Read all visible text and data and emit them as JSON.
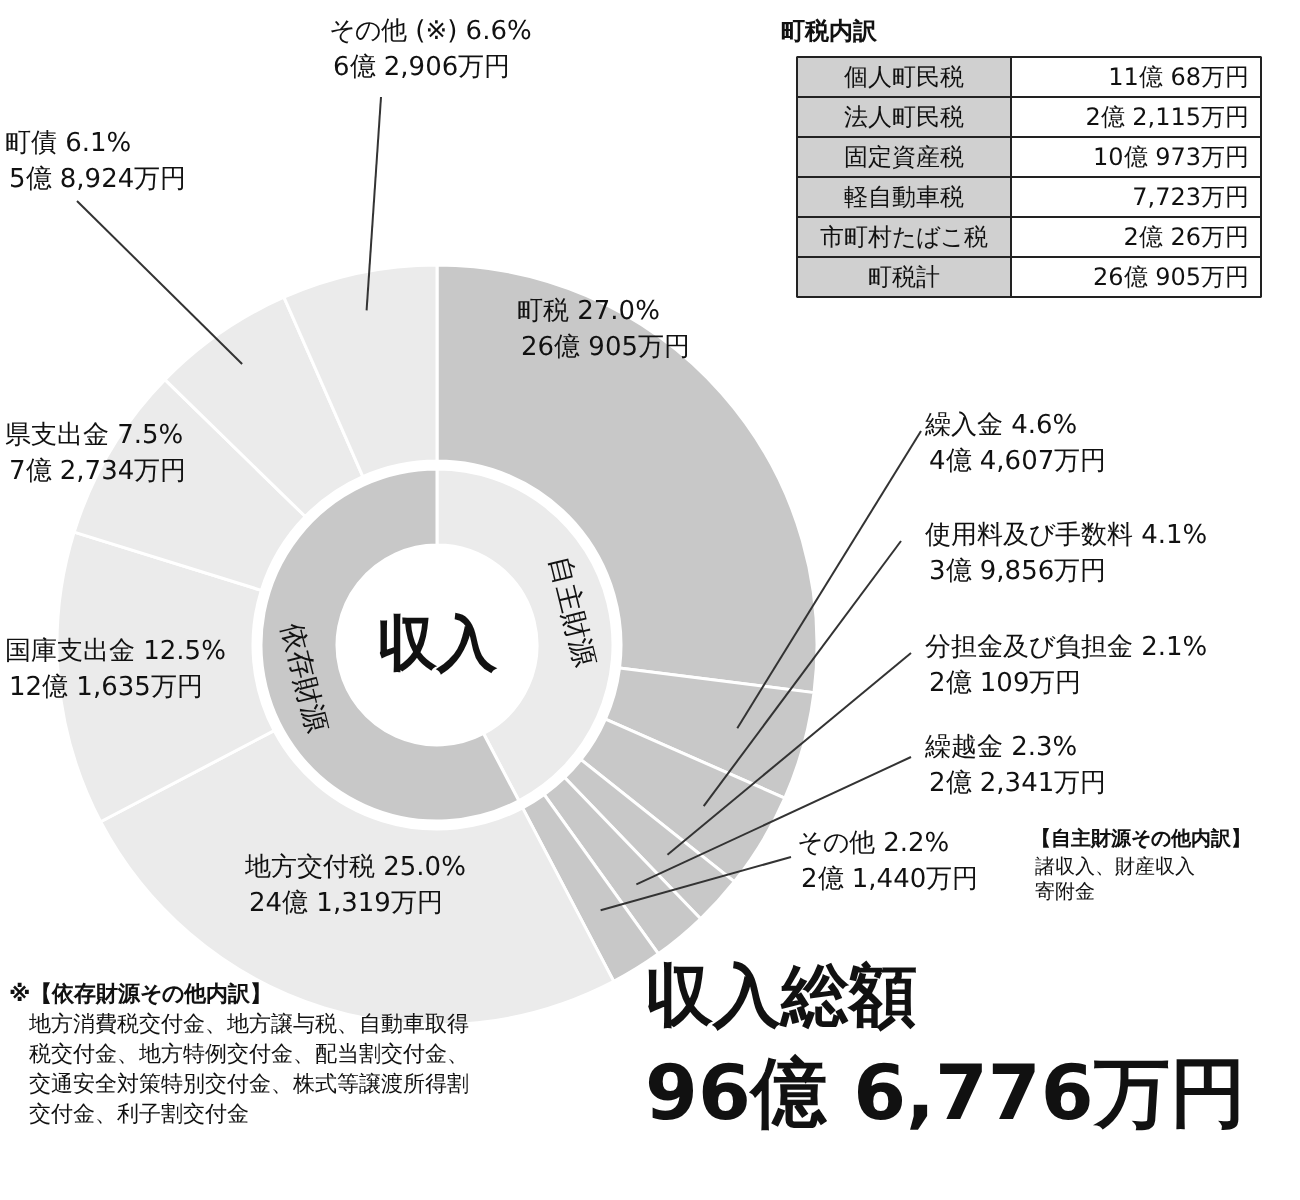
{
  "chart_data": {
    "type": "donut",
    "title": "収入",
    "subtitle": "収入総額",
    "categories": [
      "町税",
      "繰入金",
      "使用料及び手数料",
      "分担金及び負担金",
      "繰越金",
      "その他",
      "地方交付税",
      "国庫支出金",
      "県支出金",
      "町債",
      "その他 (※)"
    ],
    "series": [
      {
        "values": [
          27.0,
          4.6,
          4.1,
          2.1,
          2.3,
          2.2,
          25.0,
          12.5,
          7.5,
          6.1,
          6.6
        ],
        "value_labels": [
          "27.0%\n26億 905万円",
          "4.6%\n4億 4,607万円",
          "4.1%\n3億 9,856万円",
          "2.1%\n2億 109万円",
          "2.3%\n2億 2,341万円",
          "2.2%\n2億 1,440万円",
          "25.0%\n24億 1,319万円",
          "12.5%\n12億 1,635万円",
          "7.5%\n7億 2,734万円",
          "6.1%\n5億 8,924万円",
          "6.6%\n6億 2,906万円"
        ],
        "colors": [
          "#c8c8c8",
          "#c8c8c8",
          "#c8c8c8",
          "#c8c8c8",
          "#c8c8c8",
          "#c8c8c8",
          "#ebebeb",
          "#ebebeb",
          "#ebebeb",
          "#ebebeb",
          "#ebebeb"
        ]
      },
      {
        "values": [
          42.3,
          null,
          null,
          null,
          null,
          null,
          57.7,
          null,
          null,
          null,
          null
        ],
        "colors": [
          "#ebebeb",
          null,
          null,
          null,
          null,
          null,
          "#c8c8c8",
          null,
          null,
          null,
          null
        ]
      }
    ],
    "annotations": [
      "町税内訳",
      "個人町民税",
      "11億 68万円",
      "法人町民税",
      "2億 2,115万円",
      "固定資産税",
      "10億 973万円",
      "軽自動車税",
      "7,723万円",
      "市町村たばこ税",
      "2億 26万円",
      "町税計",
      "26億 905万円",
      "【自主財源その他内訳】",
      "諸収入、財産収入寄附金",
      "※【依存財源その他内訳】",
      "地方消費税交付金、地方譲与税、自動車取得税交付金、地方特例交付金、配当割交付金、交通安全対策特別交付金、株式等譲渡所得割交付金、利子割交付金",
      "96億 6,776万円",
      "自主財源",
      "依存財源"
    ]
  }
}
